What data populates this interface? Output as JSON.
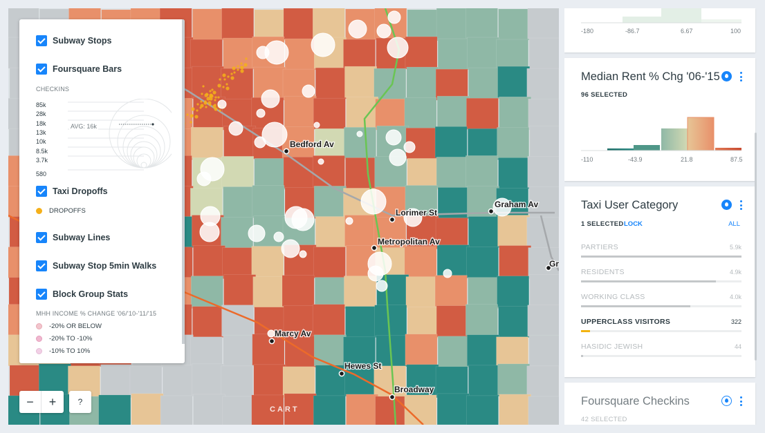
{
  "map": {
    "stations": [
      {
        "name": "Bedford Av"
      },
      {
        "name": "Lorimer St"
      },
      {
        "name": "Graham Av"
      },
      {
        "name": "Metropolitan Av"
      },
      {
        "name": "Marcy Av"
      },
      {
        "name": "Hewes St"
      },
      {
        "name": "Broadway"
      },
      {
        "name": "Gr"
      }
    ],
    "attribution": "CART",
    "colors": {
      "teal_dark": "#2a8a84",
      "teal_light": "#8fb8a6",
      "sand": "#e7c596",
      "cream": "#d2d9b3",
      "orange": "#e8906a",
      "red_orange": "#d25c43",
      "taxi_dropoff": "#f5b01a",
      "subway_green": "#6ac553",
      "subway_orange": "#ec6a2a",
      "subway_gray": "#a5a8ab"
    }
  },
  "layers_panel": {
    "items": [
      {
        "label": "Subway Stops",
        "checked": true
      },
      {
        "label": "Foursquare Bars",
        "checked": true
      },
      {
        "label": "Taxi Dropoffs",
        "checked": true
      },
      {
        "label": "Subway Lines",
        "checked": true
      },
      {
        "label": "Subway Stop 5min Walks",
        "checked": true
      },
      {
        "label": "Block Group Stats",
        "checked": true
      }
    ],
    "checkins_title": "CHECKINS",
    "bubble_values": [
      "85k",
      "28k",
      "18k",
      "13k",
      "10k",
      "8.5k",
      "3.7k",
      "580"
    ],
    "avg_label": "AVG: 16k",
    "dropoffs_label": "DROPOFFS",
    "income_title": "MHH INCOME % CHANGE '06/'10-'11/'15",
    "income_legend": [
      {
        "label": "-20% OR BELOW",
        "color": "#f2c5cd"
      },
      {
        "label": "-20% TO -10%",
        "color": "#f0b8cf"
      },
      {
        "label": "-10% TO 10%",
        "color": "#f2d0e6"
      }
    ]
  },
  "controls": {
    "zoom_out": "−",
    "zoom_in": "+",
    "help": "?"
  },
  "widgets": {
    "top_histogram": {
      "ticks": [
        "-180",
        "-86.7",
        "6.67",
        "100"
      ]
    },
    "median_rent": {
      "title": "Median Rent % Chg '06-'15",
      "selected": "96 SELECTED",
      "ticks": [
        "-110",
        "-43.9",
        "21.8",
        "87.5"
      ]
    },
    "taxi_user": {
      "title": "Taxi User Category",
      "selected": "1 SELECTED",
      "lock": "LOCK",
      "all": "ALL",
      "categories": [
        {
          "name": "PARTIERS",
          "value": "5.9k",
          "fraction": 1.0,
          "active": false
        },
        {
          "name": "RESIDENTS",
          "value": "4.9k",
          "fraction": 0.84,
          "active": false
        },
        {
          "name": "WORKING CLASS",
          "value": "4.0k",
          "fraction": 0.68,
          "active": false
        },
        {
          "name": "UPPERCLASS VISITORS",
          "value": "322",
          "fraction": 0.055,
          "active": true
        },
        {
          "name": "HASIDIC JEWISH",
          "value": "44",
          "fraction": 0.008,
          "active": false
        }
      ]
    },
    "foursquare": {
      "title": "Foursquare Checkins",
      "selected": "42 SELECTED"
    }
  }
}
